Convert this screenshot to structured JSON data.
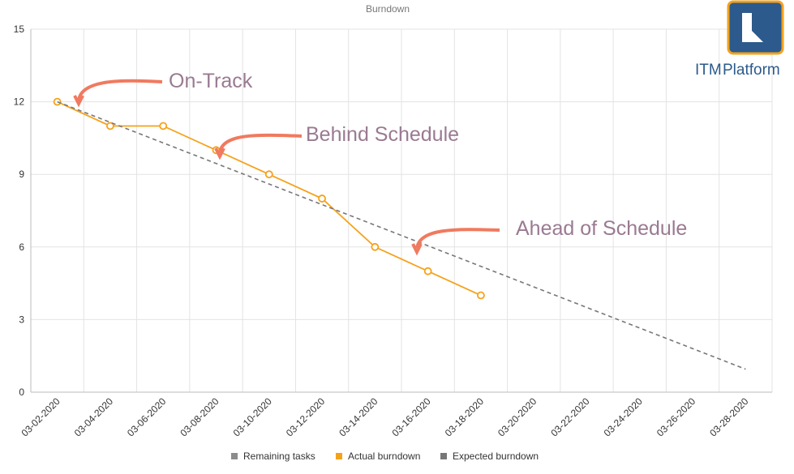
{
  "chart_data": {
    "type": "line",
    "title": "Burndown",
    "categories": [
      "03-02-2020",
      "03-04-2020",
      "03-06-2020",
      "03-08-2020",
      "03-10-2020",
      "03-12-2020",
      "03-14-2020",
      "03-16-2020",
      "03-18-2020",
      "03-20-2020",
      "03-22-2020",
      "03-24-2020",
      "03-26-2020",
      "03-28-2020"
    ],
    "series": [
      {
        "name": "Remaining tasks",
        "color": "#8c8c8c",
        "values": [
          null,
          null,
          null,
          null,
          null,
          null,
          null,
          null,
          null,
          null,
          null,
          null,
          null,
          null
        ]
      },
      {
        "name": "Actual burndown",
        "color": "#f5a21b",
        "values": [
          12,
          11,
          11,
          10,
          9,
          8,
          6,
          5,
          4,
          null,
          null,
          null,
          null,
          null
        ]
      },
      {
        "name": "Expected burndown",
        "color": "#777777",
        "dashed": true,
        "values": [
          12,
          11.15,
          10.3,
          9.45,
          8.6,
          7.75,
          6.9,
          6.05,
          5.2,
          4.35,
          3.5,
          2.65,
          1.8,
          0.95
        ]
      }
    ],
    "ylim": [
      0,
      15
    ],
    "yticks": [
      0,
      3,
      6,
      9,
      12,
      15
    ],
    "grid": true,
    "annotations": [
      "On-Track",
      "Behind Schedule",
      "Ahead of Schedule"
    ],
    "logo": {
      "brand": "ITM",
      "product": "Platform"
    }
  }
}
